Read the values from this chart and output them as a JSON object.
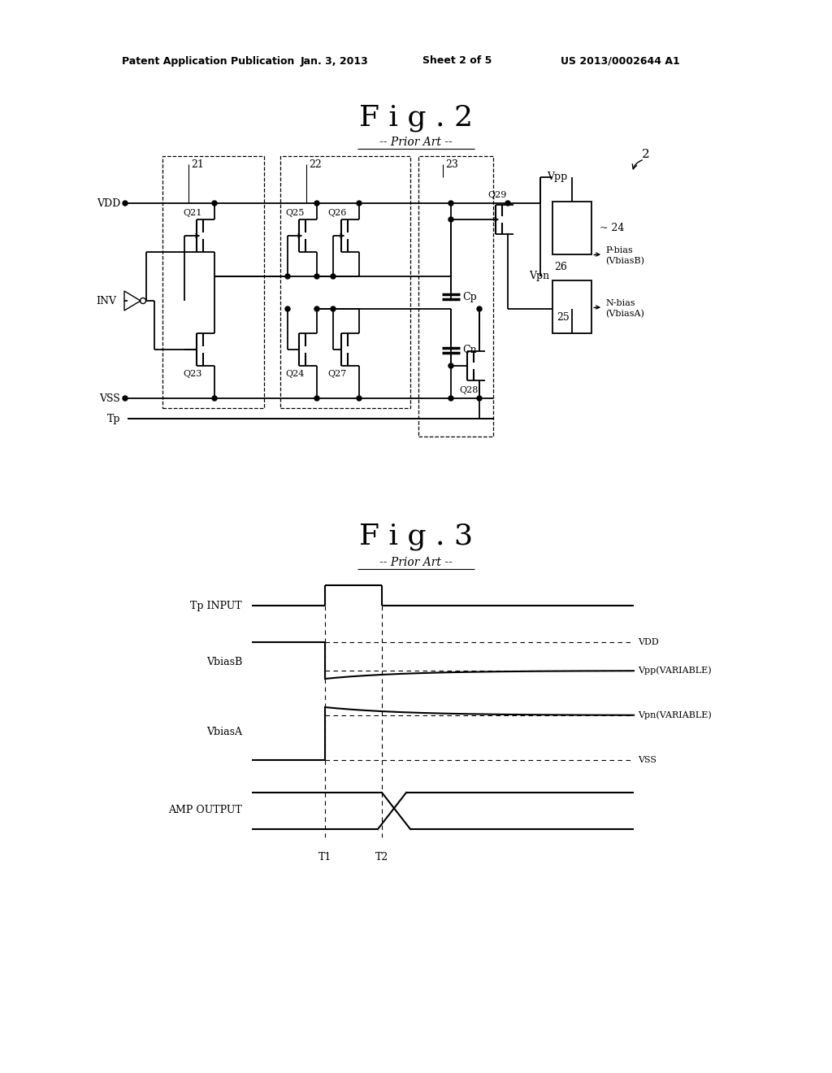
{
  "bg_color": "#ffffff",
  "fig_width": 10.24,
  "fig_height": 13.2,
  "header_text": "Patent Application Publication",
  "header_date": "Jan. 3, 2013",
  "header_sheet": "Sheet 2 of 5",
  "header_patent": "US 2013/0002644 A1",
  "fig2_title": "F i g . 2",
  "fig2_subtitle": "-- Prior Art --",
  "fig3_title": "F i g . 3",
  "fig3_subtitle": "-- Prior Art --"
}
